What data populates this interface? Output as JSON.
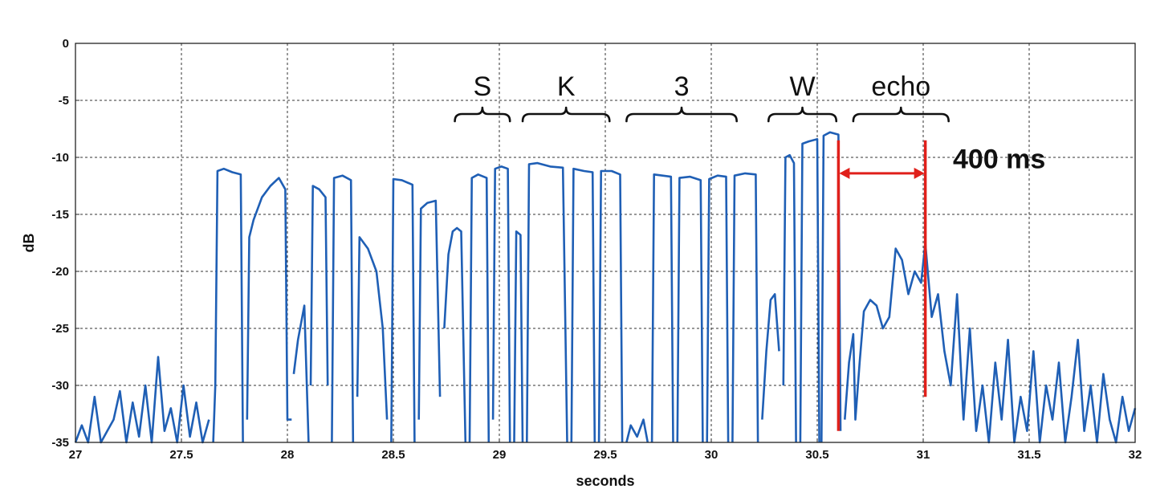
{
  "chart_data": {
    "type": "line",
    "xlabel": "seconds",
    "ylabel": "dB",
    "xlim": [
      27,
      32
    ],
    "ylim": [
      -35,
      0
    ],
    "x_ticks": [
      "27",
      "27.5",
      "28",
      "28.5",
      "29",
      "29.5",
      "30",
      "30.5",
      "31",
      "31.5",
      "32"
    ],
    "y_ticks": [
      "0",
      "-5",
      "-10",
      "-15",
      "-20",
      "-25",
      "-30",
      "-35"
    ],
    "grid": true,
    "legend": "none",
    "line_color": "#1f5fb5",
    "series": [
      {
        "segments": [
          {
            "x": [
              27.0,
              27.03,
              27.06,
              27.09,
              27.12,
              27.15,
              27.18,
              27.21,
              27.24,
              27.27,
              27.3,
              27.33,
              27.36,
              27.39,
              27.42,
              27.45,
              27.48,
              27.51,
              27.54,
              27.57,
              27.6,
              27.63
            ],
            "y": [
              -35,
              -33.5,
              -35,
              -31,
              -35,
              -34,
              -33,
              -30.5,
              -35,
              -31.5,
              -34.5,
              -30,
              -35,
              -27.5,
              -34,
              -32,
              -35,
              -30,
              -34.5,
              -31.5,
              -35,
              -33
            ]
          },
          {
            "x": [
              27.65,
              27.66,
              27.67,
              27.7,
              27.74,
              27.78,
              27.79
            ],
            "y": [
              -35,
              -30,
              -11.2,
              -11.0,
              -11.3,
              -11.5,
              -35
            ]
          },
          {
            "x": [
              27.81,
              27.82,
              27.84,
              27.88,
              27.92,
              27.96,
              27.99,
              28.0,
              28.02
            ],
            "y": [
              -33,
              -17,
              -15.5,
              -13.5,
              -12.5,
              -11.8,
              -12.8,
              -33,
              -33
            ]
          },
          {
            "x": [
              28.03,
              28.05,
              28.08,
              28.1
            ],
            "y": [
              -29,
              -26,
              -23,
              -35
            ]
          },
          {
            "x": [
              28.11,
              28.12,
              28.15,
              28.18,
              28.19
            ],
            "y": [
              -30,
              -12.5,
              -12.8,
              -13.5,
              -30
            ]
          },
          {
            "x": [
              28.21,
              28.22,
              28.26,
              28.3,
              28.31
            ],
            "y": [
              -35,
              -11.8,
              -11.6,
              -12.0,
              -35
            ]
          },
          {
            "x": [
              28.33,
              28.34,
              28.38,
              28.42,
              28.45,
              28.47
            ],
            "y": [
              -31,
              -17,
              -18,
              -20,
              -25,
              -33
            ]
          },
          {
            "x": [
              28.49,
              28.5,
              28.54,
              28.59,
              28.6
            ],
            "y": [
              -35,
              -11.9,
              -12.0,
              -12.4,
              -35
            ]
          },
          {
            "x": [
              28.62,
              28.63,
              28.66,
              28.7,
              28.72
            ],
            "y": [
              -33,
              -14.5,
              -14.0,
              -13.8,
              -31
            ]
          },
          {
            "x": [
              28.74,
              28.76,
              28.78,
              28.8,
              28.82,
              28.84
            ],
            "y": [
              -25,
              -18.5,
              -16.5,
              -16.2,
              -16.5,
              -35
            ]
          },
          {
            "x": [
              28.86,
              28.87,
              28.9,
              28.94,
              28.95
            ],
            "y": [
              -35,
              -11.8,
              -11.5,
              -11.8,
              -35
            ]
          },
          {
            "x": [
              28.97,
              28.98,
              29.01,
              29.04,
              29.05
            ],
            "y": [
              -33,
              -11.0,
              -10.8,
              -11.0,
              -35
            ]
          },
          {
            "x": [
              29.07,
              29.08,
              29.1,
              29.11
            ],
            "y": [
              -35,
              -16.5,
              -16.8,
              -35
            ]
          },
          {
            "x": [
              29.13,
              29.14,
              29.18,
              29.24,
              29.3,
              29.32
            ],
            "y": [
              -35,
              -10.6,
              -10.5,
              -10.8,
              -10.9,
              -35
            ]
          },
          {
            "x": [
              29.34,
              29.35,
              29.4,
              29.44,
              29.45
            ],
            "y": [
              -35,
              -11.0,
              -11.2,
              -11.3,
              -35
            ]
          },
          {
            "x": [
              29.47,
              29.48,
              29.53,
              29.57,
              29.58
            ],
            "y": [
              -35,
              -11.2,
              -11.2,
              -11.5,
              -35
            ]
          },
          {
            "x": [
              29.6,
              29.62,
              29.65,
              29.68,
              29.7
            ],
            "y": [
              -35,
              -33.5,
              -34.5,
              -33,
              -35
            ]
          },
          {
            "x": [
              29.72,
              29.73,
              29.77,
              29.81,
              29.82
            ],
            "y": [
              -35,
              -11.5,
              -11.6,
              -11.7,
              -35
            ]
          },
          {
            "x": [
              29.84,
              29.85,
              29.9,
              29.95,
              29.96
            ],
            "y": [
              -35,
              -11.8,
              -11.7,
              -12.0,
              -35
            ]
          },
          {
            "x": [
              29.98,
              29.99,
              30.03,
              30.07,
              30.08
            ],
            "y": [
              -35,
              -11.9,
              -11.6,
              -11.7,
              -35
            ]
          },
          {
            "x": [
              30.1,
              30.11,
              30.16,
              30.21,
              30.22
            ],
            "y": [
              -35,
              -11.6,
              -11.4,
              -11.5,
              -35
            ]
          },
          {
            "x": [
              30.24,
              30.26,
              30.28,
              30.3,
              30.32
            ],
            "y": [
              -33,
              -27,
              -22.5,
              -22.0,
              -27
            ]
          },
          {
            "x": [
              30.34,
              30.35,
              30.37,
              30.39,
              30.4
            ],
            "y": [
              -30,
              -10.0,
              -9.8,
              -10.5,
              -35
            ]
          },
          {
            "x": [
              30.42,
              30.43,
              30.46,
              30.5,
              30.51
            ],
            "y": [
              -35,
              -8.8,
              -8.6,
              -8.4,
              -35
            ]
          },
          {
            "x": [
              30.52,
              30.53,
              30.56,
              30.6,
              30.61
            ],
            "y": [
              -35,
              -8.1,
              -7.8,
              -8.0,
              -34
            ]
          },
          {
            "x": [
              30.63,
              30.65,
              30.67,
              30.68,
              30.7,
              30.72,
              30.75,
              30.78,
              30.81,
              30.84,
              30.87,
              30.9,
              30.93,
              30.96,
              30.99,
              31.01,
              31.04,
              31.07,
              31.1,
              31.13,
              31.16,
              31.19,
              31.22,
              31.25,
              31.28,
              31.31,
              31.34,
              31.37,
              31.4,
              31.43,
              31.46,
              31.49,
              31.52,
              31.55,
              31.58,
              31.61,
              31.64,
              31.67,
              31.7,
              31.73,
              31.76,
              31.79,
              31.82,
              31.85,
              31.88,
              31.91,
              31.94,
              31.97,
              32.0
            ],
            "y": [
              -33,
              -28,
              -25.5,
              -33,
              -28,
              -23.5,
              -22.5,
              -23,
              -25,
              -24,
              -18,
              -19,
              -22,
              -20,
              -21,
              -17.5,
              -24,
              -22,
              -27,
              -30,
              -22,
              -33,
              -25,
              -34,
              -30,
              -35,
              -28,
              -33,
              -26,
              -35,
              -31,
              -34,
              -27,
              -35,
              -30,
              -33,
              -28,
              -35,
              -31,
              -26,
              -34,
              -30,
              -35,
              -29,
              -33,
              -35,
              -31,
              -34,
              -32
            ]
          }
        ]
      }
    ],
    "segments": [
      {
        "label": "S",
        "start": 28.79,
        "end": 29.05
      },
      {
        "label": "K",
        "start": 29.11,
        "end": 29.52
      },
      {
        "label": "3",
        "start": 29.6,
        "end": 30.12
      },
      {
        "label": "W",
        "start": 30.27,
        "end": 30.59
      },
      {
        "label": "echo",
        "start": 30.67,
        "end": 31.12
      }
    ],
    "markers": [
      {
        "x": 30.6,
        "y_from": -34,
        "y_to": -8.5,
        "color": "#e0201b"
      },
      {
        "x": 31.01,
        "y_from": -31,
        "y_to": -8.5,
        "color": "#e0201b"
      }
    ],
    "arrow": {
      "x_from": 30.6,
      "x_to": 31.01,
      "y": -11.4,
      "color": "#e0201b"
    },
    "annotation": {
      "text": "400 ms",
      "x": 31.14,
      "y": -10.1
    }
  }
}
